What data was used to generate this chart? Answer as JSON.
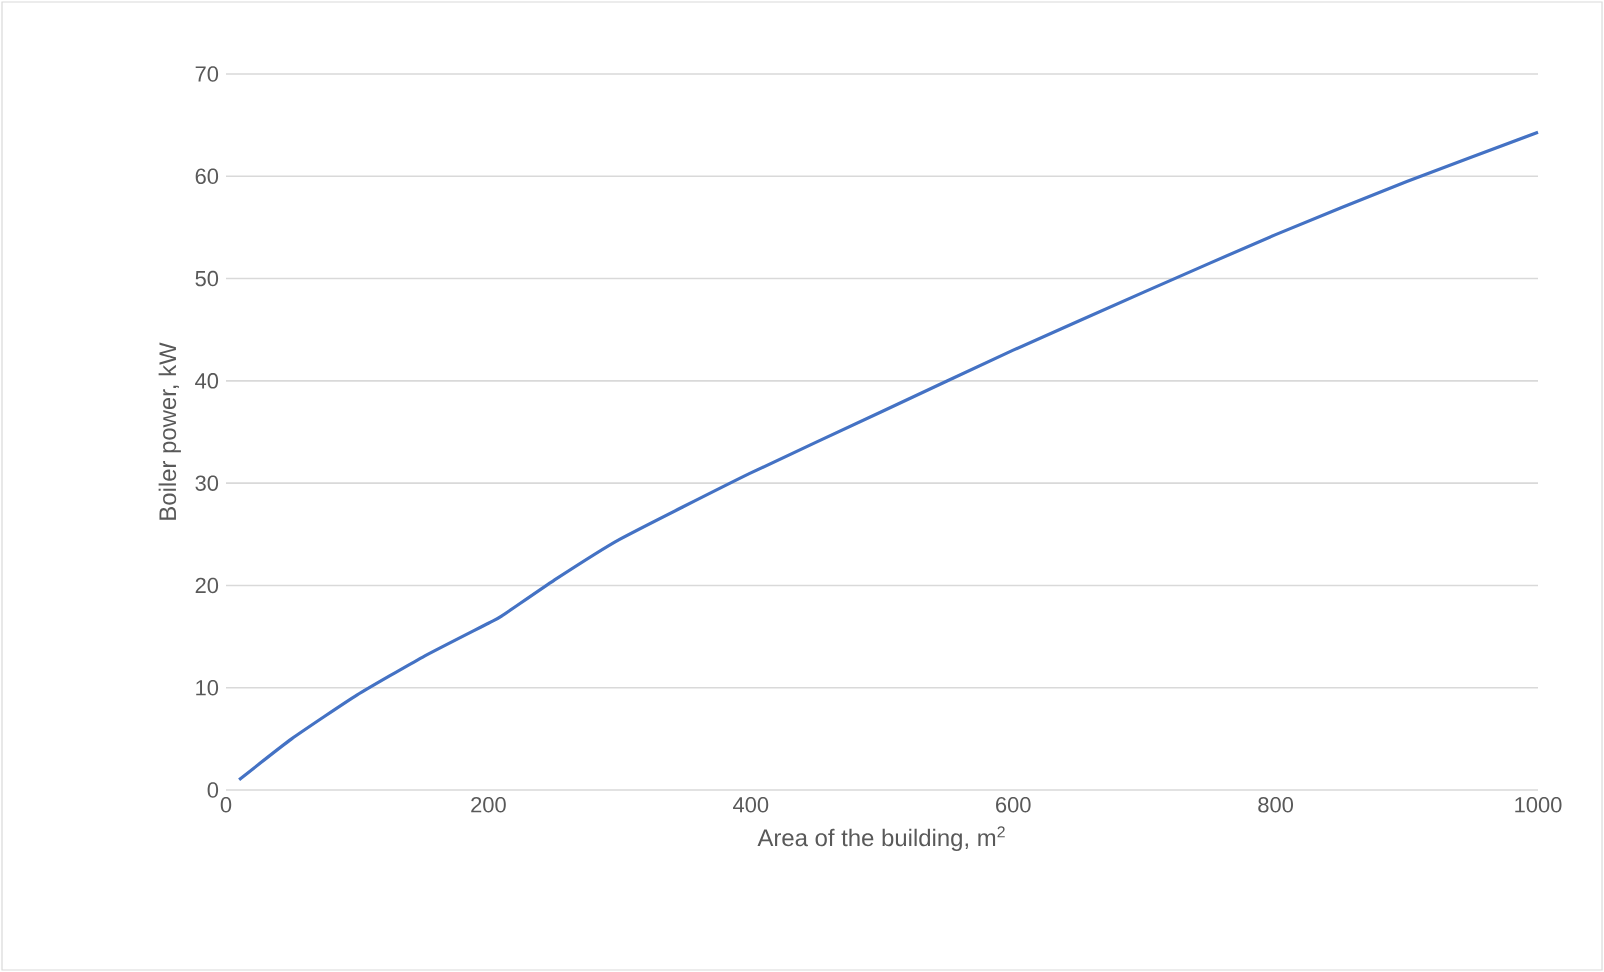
{
  "chart_data": {
    "type": "line",
    "xlabel": "Area of the building, m$^{2}$",
    "ylabel": "Boiler power, kW",
    "x": [
      10,
      50,
      100,
      150,
      200,
      210,
      250,
      300,
      400,
      500,
      600,
      700,
      800,
      900,
      1000
    ],
    "series": [
      {
        "color": "#4472c4",
        "values": [
          1,
          5,
          9.3,
          13,
          16.3,
          17,
          20.5,
          24.5,
          31,
          37,
          43,
          48.7,
          54.3,
          59.5,
          64.3
        ]
      }
    ],
    "xlim": [
      0,
      1000
    ],
    "xticks": [
      0,
      200,
      400,
      600,
      800,
      1000
    ],
    "ylim": [
      0,
      70
    ],
    "yticks": [
      0,
      10,
      20,
      30,
      40,
      50,
      60,
      70
    ],
    "grid": "y"
  }
}
